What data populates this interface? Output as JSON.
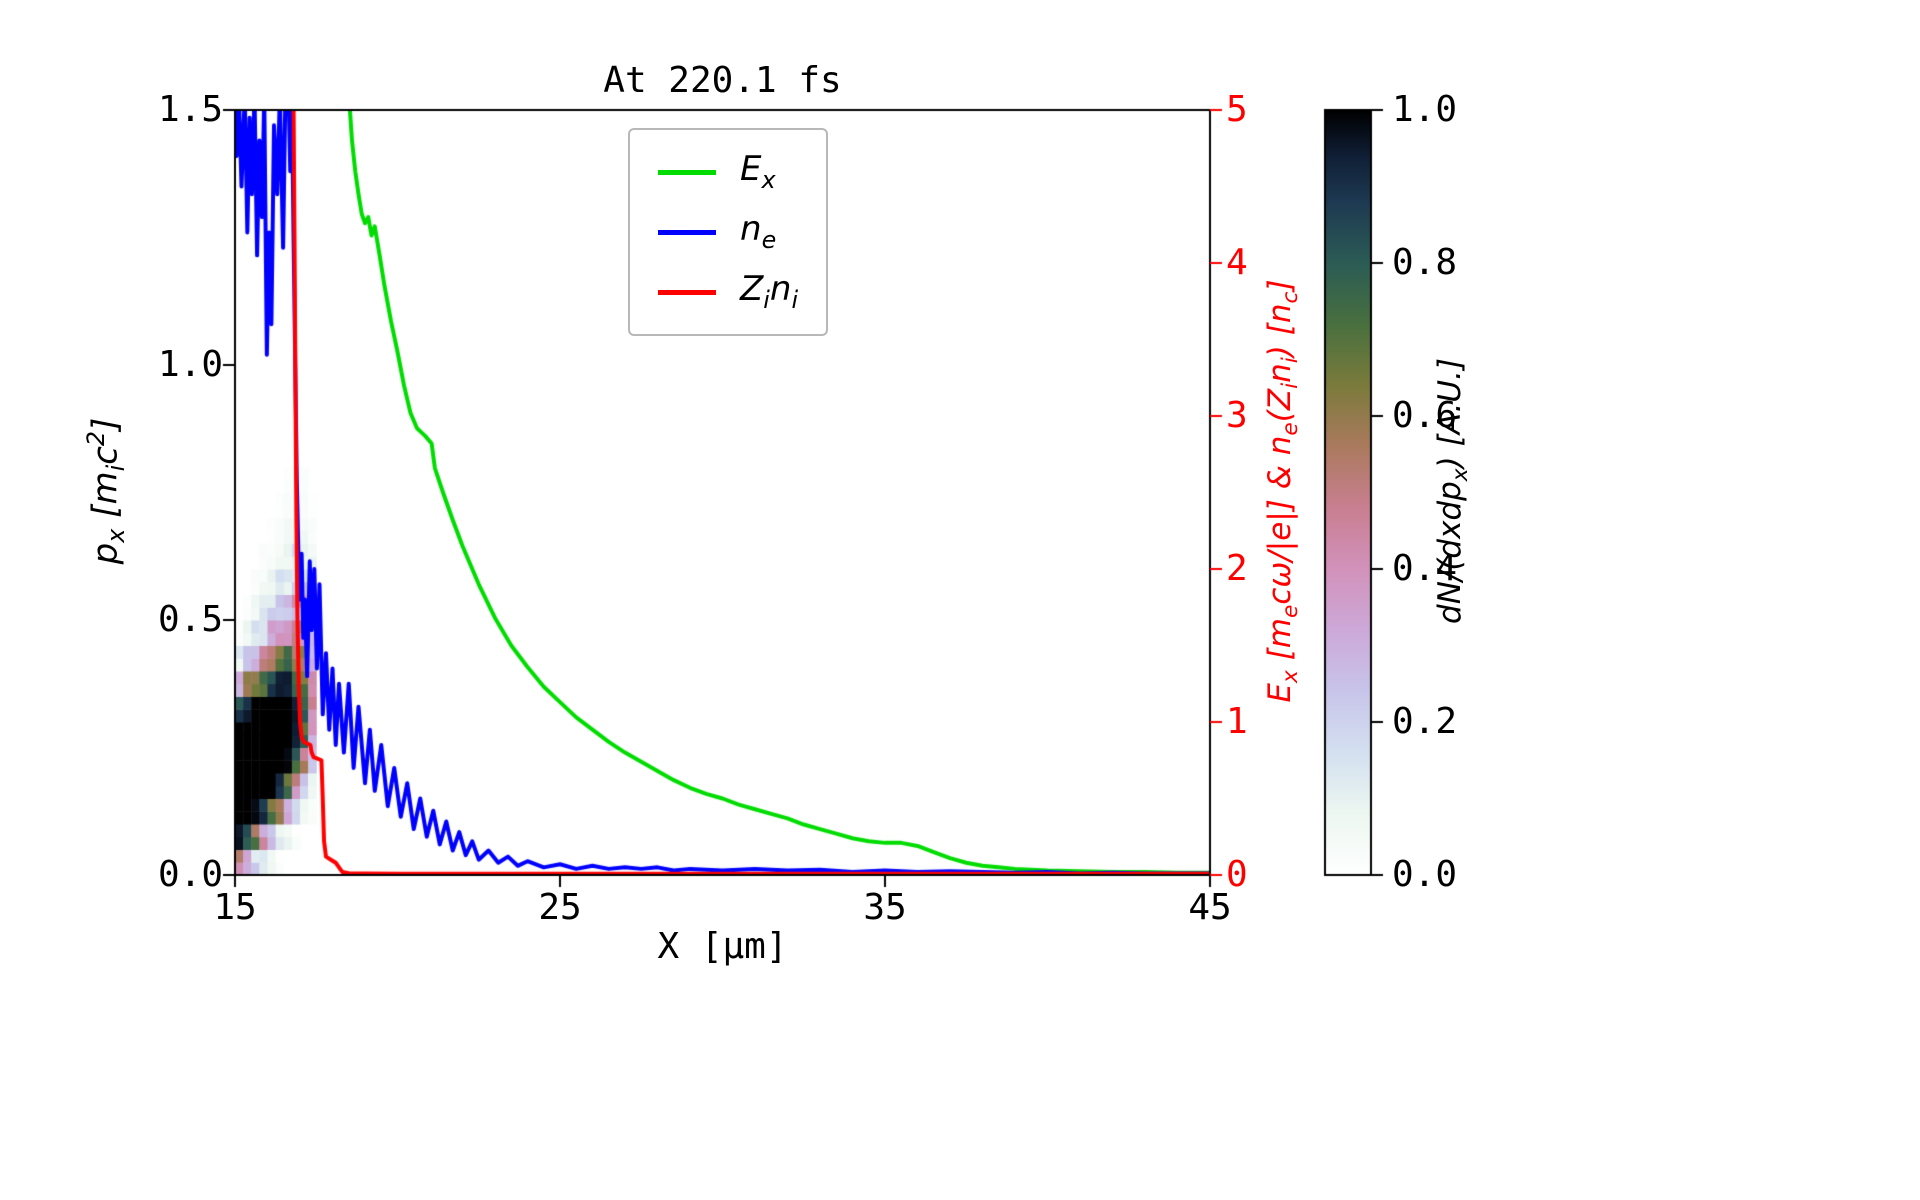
{
  "chart_data": {
    "type": "composite",
    "subtypes": [
      "heatmap",
      "line"
    ],
    "title": "At 220.1 fs",
    "xlabel": "X [μm]",
    "ylabel_left": "p_x [m_ic^2]",
    "ylabel_right": "E_x [m_ecω/|e|] & n_e(Z_in_i) [n_c]",
    "x_axis": {
      "min": 15,
      "max": 45,
      "tick_values": [
        15,
        25,
        35,
        45
      ],
      "tick_labels": [
        "15",
        "25",
        "35",
        "45"
      ]
    },
    "y_left": {
      "min": 0.0,
      "max": 1.5,
      "tick_values": [
        0.0,
        0.5,
        1.0,
        1.5
      ],
      "tick_labels": [
        "0.0",
        "0.5",
        "1.0",
        "1.5"
      ]
    },
    "y_right": {
      "min": 0,
      "max": 5,
      "tick_values": [
        0,
        1,
        2,
        3,
        4,
        5
      ],
      "tick_labels": [
        "0",
        "1",
        "2",
        "3",
        "4",
        "5"
      ],
      "color": "#ff0000"
    },
    "legend": {
      "position": "upper center",
      "entries": [
        {
          "label": "E_x",
          "color": "#00dc00"
        },
        {
          "label": "n_e",
          "color": "#0000ff"
        },
        {
          "label": "Z_in_i",
          "color": "#ff0000"
        }
      ]
    },
    "series": [
      {
        "name": "E_x",
        "axis": "right",
        "color": "#00dc00",
        "linewidth": 4,
        "points": [
          [
            18.52,
            5.05
          ],
          [
            18.6,
            4.8
          ],
          [
            18.7,
            4.6
          ],
          [
            18.8,
            4.45
          ],
          [
            18.9,
            4.32
          ],
          [
            19.0,
            4.26
          ],
          [
            19.1,
            4.3
          ],
          [
            19.2,
            4.18
          ],
          [
            19.3,
            4.24
          ],
          [
            19.45,
            4.05
          ],
          [
            19.6,
            3.85
          ],
          [
            19.8,
            3.62
          ],
          [
            20.0,
            3.42
          ],
          [
            20.2,
            3.2
          ],
          [
            20.4,
            3.02
          ],
          [
            20.6,
            2.92
          ],
          [
            20.85,
            2.87
          ],
          [
            21.05,
            2.82
          ],
          [
            21.15,
            2.66
          ],
          [
            21.4,
            2.5
          ],
          [
            21.7,
            2.32
          ],
          [
            22.0,
            2.15
          ],
          [
            22.5,
            1.9
          ],
          [
            23.0,
            1.68
          ],
          [
            23.5,
            1.5
          ],
          [
            24.0,
            1.36
          ],
          [
            24.5,
            1.23
          ],
          [
            25.0,
            1.13
          ],
          [
            25.5,
            1.03
          ],
          [
            26.0,
            0.95
          ],
          [
            26.5,
            0.87
          ],
          [
            27.0,
            0.8
          ],
          [
            27.5,
            0.74
          ],
          [
            28.0,
            0.68
          ],
          [
            28.5,
            0.62
          ],
          [
            29.0,
            0.57
          ],
          [
            29.5,
            0.53
          ],
          [
            30.0,
            0.5
          ],
          [
            30.5,
            0.46
          ],
          [
            31.0,
            0.43
          ],
          [
            31.5,
            0.4
          ],
          [
            32.0,
            0.37
          ],
          [
            32.5,
            0.33
          ],
          [
            33.0,
            0.3
          ],
          [
            33.5,
            0.27
          ],
          [
            34.0,
            0.24
          ],
          [
            34.5,
            0.22
          ],
          [
            35.0,
            0.21
          ],
          [
            35.5,
            0.21
          ],
          [
            36.0,
            0.19
          ],
          [
            36.5,
            0.15
          ],
          [
            37.0,
            0.11
          ],
          [
            37.5,
            0.08
          ],
          [
            38.0,
            0.06
          ],
          [
            38.5,
            0.05
          ],
          [
            39.0,
            0.04
          ],
          [
            40.0,
            0.03
          ],
          [
            41.0,
            0.025
          ],
          [
            42.0,
            0.02
          ],
          [
            43.0,
            0.02
          ],
          [
            44.0,
            0.015
          ],
          [
            45.0,
            0.015
          ]
        ]
      },
      {
        "name": "n_e",
        "axis": "right",
        "color": "#0000ff",
        "linewidth": 4,
        "points": [
          [
            15.0,
            5.1
          ],
          [
            15.05,
            4.7
          ],
          [
            15.12,
            5.1
          ],
          [
            15.2,
            4.5
          ],
          [
            15.3,
            5.1
          ],
          [
            15.38,
            4.2
          ],
          [
            15.45,
            4.95
          ],
          [
            15.52,
            4.45
          ],
          [
            15.6,
            5.1
          ],
          [
            15.68,
            4.05
          ],
          [
            15.75,
            4.8
          ],
          [
            15.83,
            4.3
          ],
          [
            15.9,
            5.1
          ],
          [
            15.98,
            3.4
          ],
          [
            16.05,
            4.2
          ],
          [
            16.12,
            3.6
          ],
          [
            16.2,
            4.9
          ],
          [
            16.3,
            4.45
          ],
          [
            16.38,
            5.1
          ],
          [
            16.48,
            4.1
          ],
          [
            16.55,
            5.1
          ],
          [
            16.65,
            5.1
          ],
          [
            16.7,
            4.6
          ],
          [
            16.75,
            5.1
          ],
          [
            16.8,
            4.2
          ],
          [
            16.85,
            3.4
          ],
          [
            16.9,
            2.6
          ],
          [
            16.95,
            2.1
          ],
          [
            17.0,
            1.8
          ],
          [
            17.05,
            2.1
          ],
          [
            17.1,
            1.55
          ],
          [
            17.15,
            1.8
          ],
          [
            17.22,
            1.3
          ],
          [
            17.3,
            2.05
          ],
          [
            17.36,
            1.6
          ],
          [
            17.44,
            2.0
          ],
          [
            17.52,
            1.35
          ],
          [
            17.6,
            1.9
          ],
          [
            17.7,
            1.05
          ],
          [
            17.8,
            1.45
          ],
          [
            17.9,
            0.95
          ],
          [
            18.0,
            1.35
          ],
          [
            18.1,
            0.85
          ],
          [
            18.2,
            1.25
          ],
          [
            18.35,
            0.8
          ],
          [
            18.5,
            1.25
          ],
          [
            18.65,
            0.7
          ],
          [
            18.8,
            1.1
          ],
          [
            19.0,
            0.6
          ],
          [
            19.15,
            0.95
          ],
          [
            19.3,
            0.55
          ],
          [
            19.5,
            0.85
          ],
          [
            19.7,
            0.45
          ],
          [
            19.9,
            0.7
          ],
          [
            20.1,
            0.38
          ],
          [
            20.3,
            0.6
          ],
          [
            20.5,
            0.3
          ],
          [
            20.7,
            0.5
          ],
          [
            20.9,
            0.25
          ],
          [
            21.1,
            0.42
          ],
          [
            21.3,
            0.2
          ],
          [
            21.5,
            0.35
          ],
          [
            21.7,
            0.16
          ],
          [
            21.9,
            0.28
          ],
          [
            22.1,
            0.13
          ],
          [
            22.3,
            0.22
          ],
          [
            22.5,
            0.1
          ],
          [
            22.8,
            0.16
          ],
          [
            23.1,
            0.08
          ],
          [
            23.4,
            0.12
          ],
          [
            23.7,
            0.06
          ],
          [
            24.0,
            0.09
          ],
          [
            24.5,
            0.05
          ],
          [
            25.0,
            0.07
          ],
          [
            25.5,
            0.04
          ],
          [
            26.0,
            0.06
          ],
          [
            26.5,
            0.04
          ],
          [
            27.0,
            0.05
          ],
          [
            27.5,
            0.04
          ],
          [
            28.0,
            0.05
          ],
          [
            28.5,
            0.03
          ],
          [
            29.0,
            0.04
          ],
          [
            30.0,
            0.03
          ],
          [
            31.0,
            0.04
          ],
          [
            32.0,
            0.03
          ],
          [
            33.0,
            0.035
          ],
          [
            34.0,
            0.02
          ],
          [
            35.0,
            0.03
          ],
          [
            36.0,
            0.02
          ],
          [
            37.0,
            0.025
          ],
          [
            38.0,
            0.02
          ],
          [
            39.0,
            0.015
          ],
          [
            40.0,
            0.02
          ],
          [
            41.0,
            0.01
          ],
          [
            42.0,
            0.015
          ],
          [
            43.0,
            0.01
          ],
          [
            44.0,
            0.01
          ],
          [
            45.0,
            0.01
          ]
        ]
      },
      {
        "name": "Z_in_i",
        "axis": "right",
        "color": "#ff0000",
        "linewidth": 4,
        "points": [
          [
            16.8,
            5.1
          ],
          [
            16.83,
            4.2
          ],
          [
            16.86,
            3.2
          ],
          [
            16.89,
            2.3
          ],
          [
            16.92,
            1.7
          ],
          [
            16.96,
            1.25
          ],
          [
            17.0,
            1.0
          ],
          [
            17.05,
            0.9
          ],
          [
            17.12,
            0.87
          ],
          [
            17.32,
            0.85
          ],
          [
            17.36,
            0.8
          ],
          [
            17.42,
            0.77
          ],
          [
            17.66,
            0.75
          ],
          [
            17.7,
            0.5
          ],
          [
            17.74,
            0.22
          ],
          [
            17.8,
            0.12
          ],
          [
            17.95,
            0.1
          ],
          [
            18.1,
            0.08
          ],
          [
            18.2,
            0.05
          ],
          [
            18.3,
            0.02
          ],
          [
            18.5,
            0.012
          ],
          [
            19.0,
            0.01
          ],
          [
            20.0,
            0.008
          ],
          [
            25.0,
            0.008
          ],
          [
            30.0,
            0.008
          ],
          [
            35.0,
            0.008
          ],
          [
            40.0,
            0.008
          ],
          [
            45.0,
            0.008
          ]
        ]
      }
    ],
    "heatmap": {
      "axis": "left",
      "x0": 15.0,
      "dx": 0.25,
      "p0": 0.0,
      "dp": 0.05,
      "columns": [
        [
          0.55,
          0.95,
          1,
          1,
          1,
          1,
          0.85,
          0.35,
          0.1,
          0.03,
          0,
          0,
          0,
          0,
          0,
          0
        ],
        [
          0.35,
          0.85,
          1,
          1,
          1,
          1,
          0.92,
          0.5,
          0.2,
          0.06,
          0.02,
          0,
          0,
          0,
          0,
          0
        ],
        [
          0.18,
          0.65,
          0.98,
          1,
          1,
          1,
          1,
          0.62,
          0.3,
          0.12,
          0.05,
          0.02,
          0,
          0,
          0,
          0
        ],
        [
          0.1,
          0.42,
          0.9,
          1,
          1,
          1,
          1,
          0.72,
          0.42,
          0.2,
          0.1,
          0.04,
          0.02,
          0,
          0,
          0
        ],
        [
          0.05,
          0.22,
          0.72,
          1,
          1,
          1,
          1,
          0.82,
          0.52,
          0.3,
          0.16,
          0.08,
          0.03,
          0.01,
          0,
          0
        ],
        [
          0.02,
          0.12,
          0.5,
          0.92,
          1,
          1,
          1,
          0.9,
          0.62,
          0.4,
          0.22,
          0.12,
          0.05,
          0.02,
          0.01,
          0
        ],
        [
          0,
          0.06,
          0.3,
          0.72,
          0.98,
          1,
          1,
          0.92,
          0.72,
          0.5,
          0.3,
          0.16,
          0.08,
          0.04,
          0.02,
          0.01
        ],
        [
          0,
          0.02,
          0.15,
          0.42,
          0.8,
          0.95,
          0.92,
          0.82,
          0.65,
          0.5,
          0.36,
          0.22,
          0.12,
          0.06,
          0.03,
          0.01
        ],
        [
          0,
          0,
          0.05,
          0.2,
          0.5,
          0.7,
          0.72,
          0.62,
          0.52,
          0.42,
          0.3,
          0.2,
          0.12,
          0.07,
          0.03,
          0.02
        ],
        [
          0,
          0,
          0.02,
          0.06,
          0.18,
          0.32,
          0.4,
          0.4,
          0.35,
          0.28,
          0.2,
          0.12,
          0.07,
          0.03,
          0.01,
          0
        ]
      ],
      "colormap_stops": [
        [
          0.0,
          "#ffffff"
        ],
        [
          0.08,
          "#edf7f1"
        ],
        [
          0.16,
          "#d4e0f0"
        ],
        [
          0.24,
          "#c8c5ea"
        ],
        [
          0.32,
          "#cda9d9"
        ],
        [
          0.4,
          "#d292bb"
        ],
        [
          0.48,
          "#c97f91"
        ],
        [
          0.56,
          "#ab7a5e"
        ],
        [
          0.64,
          "#7b7b3c"
        ],
        [
          0.72,
          "#49703f"
        ],
        [
          0.8,
          "#2c5c55"
        ],
        [
          0.88,
          "#1d3a52"
        ],
        [
          0.94,
          "#101f36"
        ],
        [
          1.0,
          "#000000"
        ]
      ]
    },
    "colorbar": {
      "label": "dN/(dxdp_x) [A.U.]",
      "min": 0.0,
      "max": 1.0,
      "tick_values": [
        0.0,
        0.2,
        0.4,
        0.6,
        0.8,
        1.0
      ],
      "tick_labels": [
        "0.0",
        "0.2",
        "0.4",
        "0.6",
        "0.8",
        "1.0"
      ]
    }
  }
}
